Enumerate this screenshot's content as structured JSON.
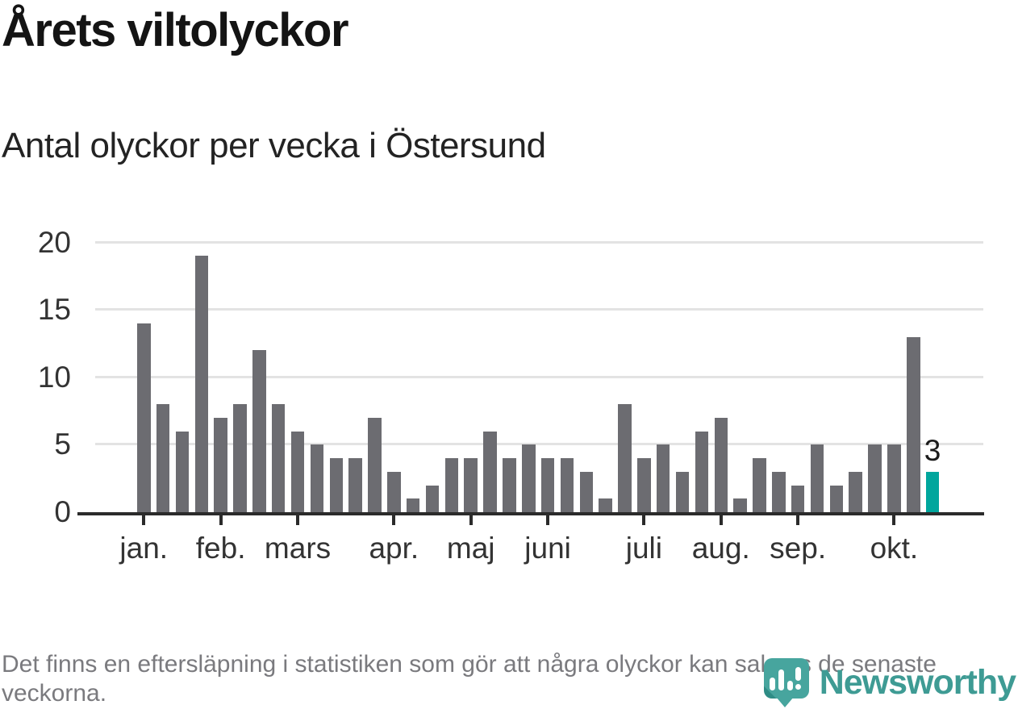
{
  "header": {
    "title": "Årets viltolyckor",
    "subtitle": "Antal olyckor per vecka i Östersund"
  },
  "chart_data": {
    "type": "bar",
    "title": "Årets viltolyckor",
    "subtitle": "Antal olyckor per vecka i Östersund",
    "ylabel": "",
    "xlabel": "",
    "ylim": [
      0,
      20
    ],
    "yticks": [
      0,
      5,
      10,
      15,
      20
    ],
    "grid": "horizontal",
    "values": [
      14,
      8,
      6,
      19,
      7,
      8,
      12,
      8,
      6,
      5,
      4,
      4,
      7,
      3,
      1,
      2,
      4,
      4,
      6,
      4,
      5,
      4,
      4,
      3,
      1,
      8,
      4,
      5,
      3,
      6,
      7,
      1,
      4,
      3,
      2,
      5,
      2,
      3,
      5,
      5,
      13,
      3
    ],
    "highlight_index": 41,
    "highlight_value_label": "3",
    "x_tick_labels": [
      {
        "label": "jan.",
        "bar_index": 0
      },
      {
        "label": "feb.",
        "bar_index": 4
      },
      {
        "label": "mars",
        "bar_index": 8
      },
      {
        "label": "apr.",
        "bar_index": 13
      },
      {
        "label": "maj",
        "bar_index": 17
      },
      {
        "label": "juni",
        "bar_index": 21
      },
      {
        "label": "juli",
        "bar_index": 26
      },
      {
        "label": "aug.",
        "bar_index": 30
      },
      {
        "label": "sep.",
        "bar_index": 34
      },
      {
        "label": "okt.",
        "bar_index": 39
      }
    ],
    "colors": {
      "bar": "#6c6c71",
      "highlight": "#00a69d",
      "gridline": "#e3e3e3",
      "axis": "#2b2b2b",
      "tick_label": "#333333",
      "value_label": "#1a1a1a"
    }
  },
  "footer": {
    "note": "Det finns en eftersläpning i statistiken som gör att några olyckor kan saknas de senaste veckorna."
  },
  "logo": {
    "name": "Newsworthy",
    "icon": "newsworthy-bubble-chart-icon",
    "text_color": "#3e9b94",
    "icon_color": "#47a59e"
  }
}
